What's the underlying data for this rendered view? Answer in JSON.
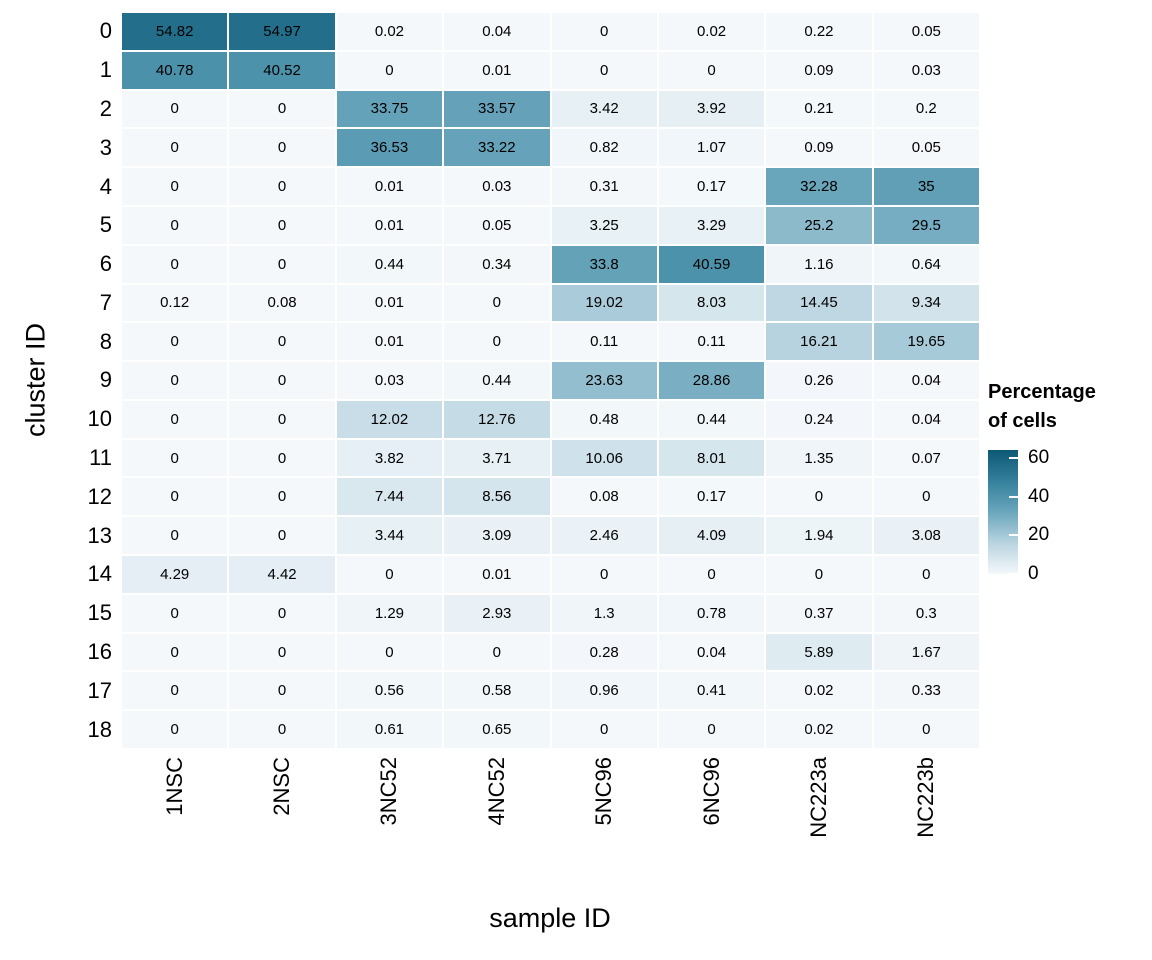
{
  "chart_data": {
    "type": "heatmap",
    "title": "",
    "xlabel": "sample ID",
    "ylabel": "cluster ID",
    "columns": [
      "1NSC",
      "2NSC",
      "3NC52",
      "4NC52",
      "5NC96",
      "6NC96",
      "NC223a",
      "NC223b"
    ],
    "rows": [
      "0",
      "1",
      "2",
      "3",
      "4",
      "5",
      "6",
      "7",
      "8",
      "9",
      "10",
      "11",
      "12",
      "13",
      "14",
      "15",
      "16",
      "17",
      "18"
    ],
    "values": [
      [
        "54.82",
        "54.97",
        "0.02",
        "0.04",
        "0",
        "0.02",
        "0.22",
        "0.05"
      ],
      [
        "40.78",
        "40.52",
        "0",
        "0.01",
        "0",
        "0",
        "0.09",
        "0.03"
      ],
      [
        "0",
        "0",
        "33.75",
        "33.57",
        "3.42",
        "3.92",
        "0.21",
        "0.2"
      ],
      [
        "0",
        "0",
        "36.53",
        "33.22",
        "0.82",
        "1.07",
        "0.09",
        "0.05"
      ],
      [
        "0",
        "0",
        "0.01",
        "0.03",
        "0.31",
        "0.17",
        "32.28",
        "35"
      ],
      [
        "0",
        "0",
        "0.01",
        "0.05",
        "3.25",
        "3.29",
        "25.2",
        "29.5"
      ],
      [
        "0",
        "0",
        "0.44",
        "0.34",
        "33.8",
        "40.59",
        "1.16",
        "0.64"
      ],
      [
        "0.12",
        "0.08",
        "0.01",
        "0",
        "19.02",
        "8.03",
        "14.45",
        "9.34"
      ],
      [
        "0",
        "0",
        "0.01",
        "0",
        "0.11",
        "0.11",
        "16.21",
        "19.65"
      ],
      [
        "0",
        "0",
        "0.03",
        "0.44",
        "23.63",
        "28.86",
        "0.26",
        "0.04"
      ],
      [
        "0",
        "0",
        "12.02",
        "12.76",
        "0.48",
        "0.44",
        "0.24",
        "0.04"
      ],
      [
        "0",
        "0",
        "3.82",
        "3.71",
        "10.06",
        "8.01",
        "1.35",
        "0.07"
      ],
      [
        "0",
        "0",
        "7.44",
        "8.56",
        "0.08",
        "0.17",
        "0",
        "0"
      ],
      [
        "0",
        "0",
        "3.44",
        "3.09",
        "2.46",
        "4.09",
        "1.94",
        "3.08"
      ],
      [
        "4.29",
        "4.42",
        "0",
        "0.01",
        "0",
        "0",
        "0",
        "0"
      ],
      [
        "0",
        "0",
        "1.29",
        "2.93",
        "1.3",
        "0.78",
        "0.37",
        "0.3"
      ],
      [
        "0",
        "0",
        "0",
        "0",
        "0.28",
        "0.04",
        "5.89",
        "1.67"
      ],
      [
        "0",
        "0",
        "0.56",
        "0.58",
        "0.96",
        "0.41",
        "0.02",
        "0.33"
      ],
      [
        "0",
        "0",
        "0.61",
        "0.65",
        "0",
        "0",
        "0.02",
        "0"
      ]
    ],
    "legend": {
      "title_lines": [
        "Percentage",
        "of cells"
      ],
      "ticks": [
        60,
        40,
        20,
        0
      ],
      "position": "right"
    },
    "color_scale": {
      "min": 0,
      "max": 64,
      "low": "#f4f8fb",
      "high": "#0d5875",
      "stops": [
        [
          0,
          "#f4f8fb"
        ],
        [
          0.25,
          "#b9d4e0"
        ],
        [
          0.5,
          "#6aa6bc"
        ],
        [
          0.75,
          "#34809c"
        ],
        [
          1,
          "#0d5875"
        ]
      ]
    },
    "grid": false
  }
}
